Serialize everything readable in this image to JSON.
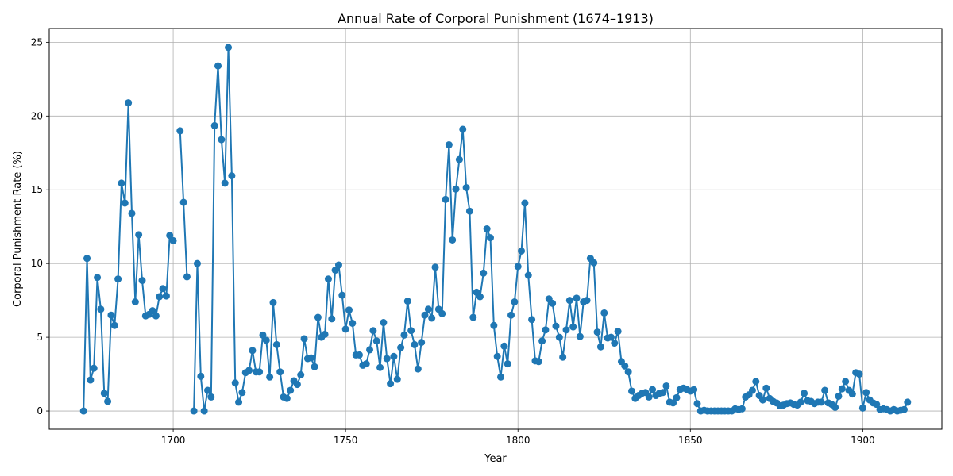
{
  "chart_data": {
    "type": "line",
    "title": "Annual Rate of Corporal Punishment (1674–1913)",
    "xlabel": "Year",
    "ylabel": "Corporal Punishment Rate (%)",
    "xlim": [
      1664.05,
      1922.95
    ],
    "ylim": [
      -1.235,
      25.935
    ],
    "xticks": [
      1700,
      1750,
      1800,
      1850,
      1900
    ],
    "yticks": [
      0,
      5,
      10,
      15,
      20,
      25
    ],
    "grid": true,
    "legend": "none",
    "color": "#1f77b4",
    "markers": "circle",
    "series": [
      {
        "x": [
          1674,
          1675,
          1676,
          1677,
          1678,
          1679,
          1680,
          1681,
          1682,
          1683,
          1684,
          1685,
          1686,
          1687,
          1688,
          1689,
          1690,
          1691,
          1692,
          1693,
          1694,
          1695,
          1696,
          1697,
          1698,
          1699,
          1700,
          1701,
          1702,
          1703,
          1704,
          1705,
          1706,
          1707,
          1708,
          1709,
          1710,
          1711,
          1712,
          1713,
          1714,
          1715,
          1716,
          1717,
          1718,
          1719,
          1720,
          1721,
          1722,
          1723,
          1724,
          1725,
          1726,
          1727,
          1728,
          1729,
          1730,
          1731,
          1732,
          1733,
          1734,
          1735,
          1736,
          1737,
          1738,
          1739,
          1740,
          1741,
          1742,
          1743,
          1744,
          1745,
          1746,
          1747,
          1748,
          1749,
          1750,
          1751,
          1752,
          1753,
          1754,
          1755,
          1756,
          1757,
          1758,
          1759,
          1760,
          1761,
          1762,
          1763,
          1764,
          1765,
          1766,
          1767,
          1768,
          1769,
          1770,
          1771,
          1772,
          1773,
          1774,
          1775,
          1776,
          1777,
          1778,
          1779,
          1780,
          1781,
          1782,
          1783,
          1784,
          1785,
          1786,
          1787,
          1788,
          1789,
          1790,
          1791,
          1792,
          1793,
          1794,
          1795,
          1796,
          1797,
          1798,
          1799,
          1800,
          1801,
          1802,
          1803,
          1804,
          1805,
          1806,
          1807,
          1808,
          1809,
          1810,
          1811,
          1812,
          1813,
          1814,
          1815,
          1816,
          1817,
          1818,
          1819,
          1820,
          1821,
          1822,
          1823,
          1824,
          1825,
          1826,
          1827,
          1828,
          1829,
          1830,
          1831,
          1832,
          1833,
          1834,
          1835,
          1836,
          1837,
          1838,
          1839,
          1840,
          1841,
          1842,
          1843,
          1844,
          1845,
          1846,
          1847,
          1848,
          1849,
          1850,
          1851,
          1852,
          1853,
          1854,
          1855,
          1856,
          1857,
          1858,
          1859,
          1860,
          1861,
          1862,
          1863,
          1864,
          1865,
          1866,
          1867,
          1868,
          1869,
          1870,
          1871,
          1872,
          1873,
          1874,
          1875,
          1876,
          1877,
          1878,
          1879,
          1880,
          1881,
          1882,
          1883,
          1884,
          1885,
          1886,
          1887,
          1888,
          1889,
          1890,
          1891,
          1892,
          1893,
          1894,
          1895,
          1896,
          1897,
          1898,
          1899,
          1900,
          1901,
          1902,
          1903,
          1904,
          1905,
          1906,
          1907,
          1908,
          1909,
          1910,
          1911,
          1912,
          1913
        ],
        "y": [
          0,
          10.35,
          2.1,
          2.9,
          9.05,
          6.9,
          1.2,
          0.65,
          6.5,
          5.8,
          8.95,
          15.45,
          14.1,
          20.9,
          13.4,
          7.4,
          11.95,
          8.85,
          6.45,
          6.55,
          6.8,
          6.45,
          7.75,
          8.3,
          7.8,
          11.9,
          11.55,
          null,
          19,
          14.15,
          9.1,
          null,
          0,
          10,
          2.35,
          0,
          1.4,
          0.95,
          19.35,
          23.4,
          18.4,
          15.45,
          24.65,
          15.95,
          1.9,
          0.6,
          1.25,
          2.6,
          2.75,
          4.1,
          2.65,
          2.65,
          5.15,
          4.8,
          2.3,
          7.35,
          4.5,
          2.65,
          0.95,
          0.85,
          1.4,
          2.05,
          1.8,
          2.45,
          4.9,
          3.55,
          3.6,
          3,
          6.35,
          5,
          5.2,
          8.95,
          6.25,
          9.55,
          9.9,
          7.85,
          5.55,
          6.85,
          5.95,
          3.8,
          3.8,
          3.1,
          3.2,
          4.15,
          5.45,
          4.75,
          2.95,
          6,
          3.55,
          1.85,
          3.7,
          2.15,
          4.3,
          5.15,
          7.45,
          5.45,
          4.5,
          2.85,
          4.65,
          6.5,
          6.9,
          6.3,
          9.75,
          6.9,
          6.6,
          14.35,
          18.05,
          11.6,
          15.05,
          17.05,
          19.1,
          15.15,
          13.55,
          6.35,
          8.05,
          7.75,
          9.35,
          12.35,
          11.75,
          5.8,
          3.7,
          2.3,
          4.4,
          3.2,
          6.5,
          7.4,
          9.8,
          10.85,
          14.1,
          9.2,
          6.2,
          3.4,
          3.35,
          4.75,
          5.5,
          7.6,
          7.3,
          5.75,
          5,
          3.65,
          5.5,
          7.5,
          5.7,
          7.65,
          5.05,
          7.4,
          7.5,
          10.35,
          10.05,
          5.35,
          4.35,
          6.65,
          4.95,
          5,
          4.6,
          5.4,
          3.35,
          3.05,
          2.65,
          1.35,
          0.85,
          1.05,
          1.2,
          1.25,
          0.95,
          1.45,
          1.05,
          1.2,
          1.25,
          1.7,
          0.6,
          0.55,
          0.9,
          1.45,
          1.55,
          1.45,
          1.35,
          1.45,
          0.5,
          0,
          0.05,
          0,
          0,
          0,
          0,
          0,
          0,
          0,
          0,
          0.15,
          0.1,
          0.15,
          0.95,
          1.1,
          1.4,
          2,
          1.05,
          0.75,
          1.55,
          0.85,
          0.65,
          0.55,
          0.35,
          0.4,
          0.5,
          0.55,
          0.45,
          0.4,
          0.6,
          1.2,
          0.7,
          0.65,
          0.5,
          0.6,
          0.6,
          1.4,
          0.55,
          0.45,
          0.25,
          1,
          1.5,
          2,
          1.4,
          1.15,
          2.6,
          2.5,
          0.2,
          1.25,
          0.75,
          0.55,
          0.45,
          0.1,
          0.15,
          0.1,
          0,
          0.1,
          0,
          0.05,
          0.1,
          0.6
        ]
      }
    ]
  }
}
